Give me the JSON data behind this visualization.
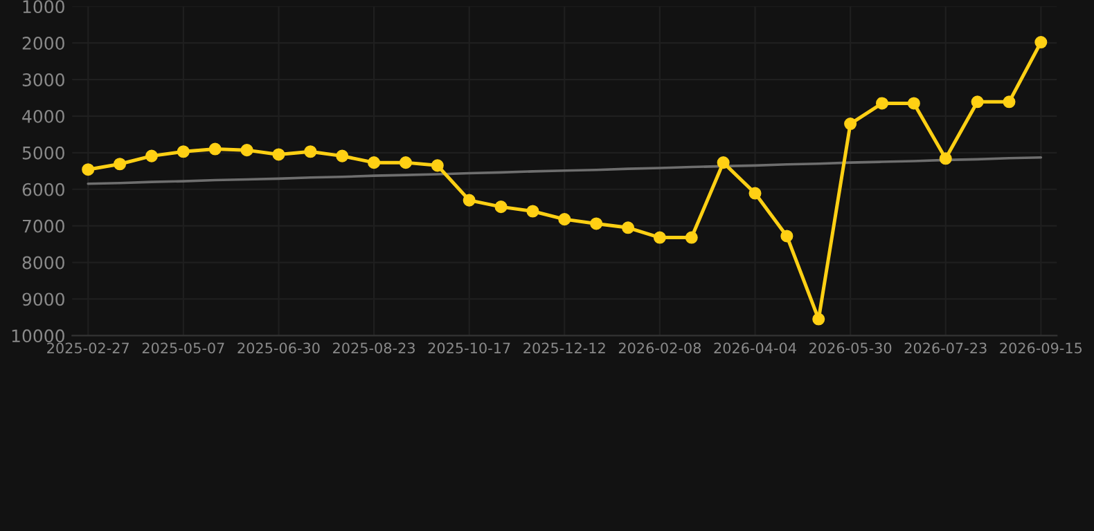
{
  "chart_data": {
    "type": "line",
    "categories": [
      "2025-02-27",
      null,
      null,
      "2025-05-07",
      null,
      null,
      "2025-06-30",
      null,
      null,
      "2025-08-23",
      null,
      null,
      "2025-10-17",
      null,
      null,
      "2025-12-12",
      null,
      null,
      "2026-02-08",
      null,
      null,
      "2026-04-04",
      null,
      null,
      "2026-05-30",
      null,
      null,
      "2026-07-23",
      null,
      null,
      "2026-09-15"
    ],
    "series": [
      {
        "color": "#ffd014",
        "marker": "circle",
        "values": [
          5460,
          5310,
          5090,
          4970,
          4900,
          4930,
          5050,
          4970,
          5090,
          5270,
          5270,
          5350,
          6300,
          6480,
          6600,
          6820,
          6940,
          7050,
          7320,
          7320,
          5270,
          6110,
          7280,
          9550,
          4210,
          3650,
          3650,
          5160,
          3610,
          3610,
          1980
        ]
      },
      {
        "color": "#6e6e6e",
        "marker": "none",
        "values": [
          5850,
          5830,
          5800,
          5780,
          5750,
          5730,
          5710,
          5680,
          5660,
          5630,
          5610,
          5590,
          5560,
          5540,
          5510,
          5490,
          5470,
          5440,
          5420,
          5390,
          5370,
          5350,
          5320,
          5300,
          5270,
          5250,
          5230,
          5200,
          5180,
          5150,
          5130
        ]
      }
    ],
    "ylim": [
      10000,
      1000
    ],
    "yticks": [
      1000,
      2000,
      3000,
      4000,
      5000,
      6000,
      7000,
      8000,
      9000,
      10000
    ],
    "grid": true,
    "line_style": "solid"
  }
}
